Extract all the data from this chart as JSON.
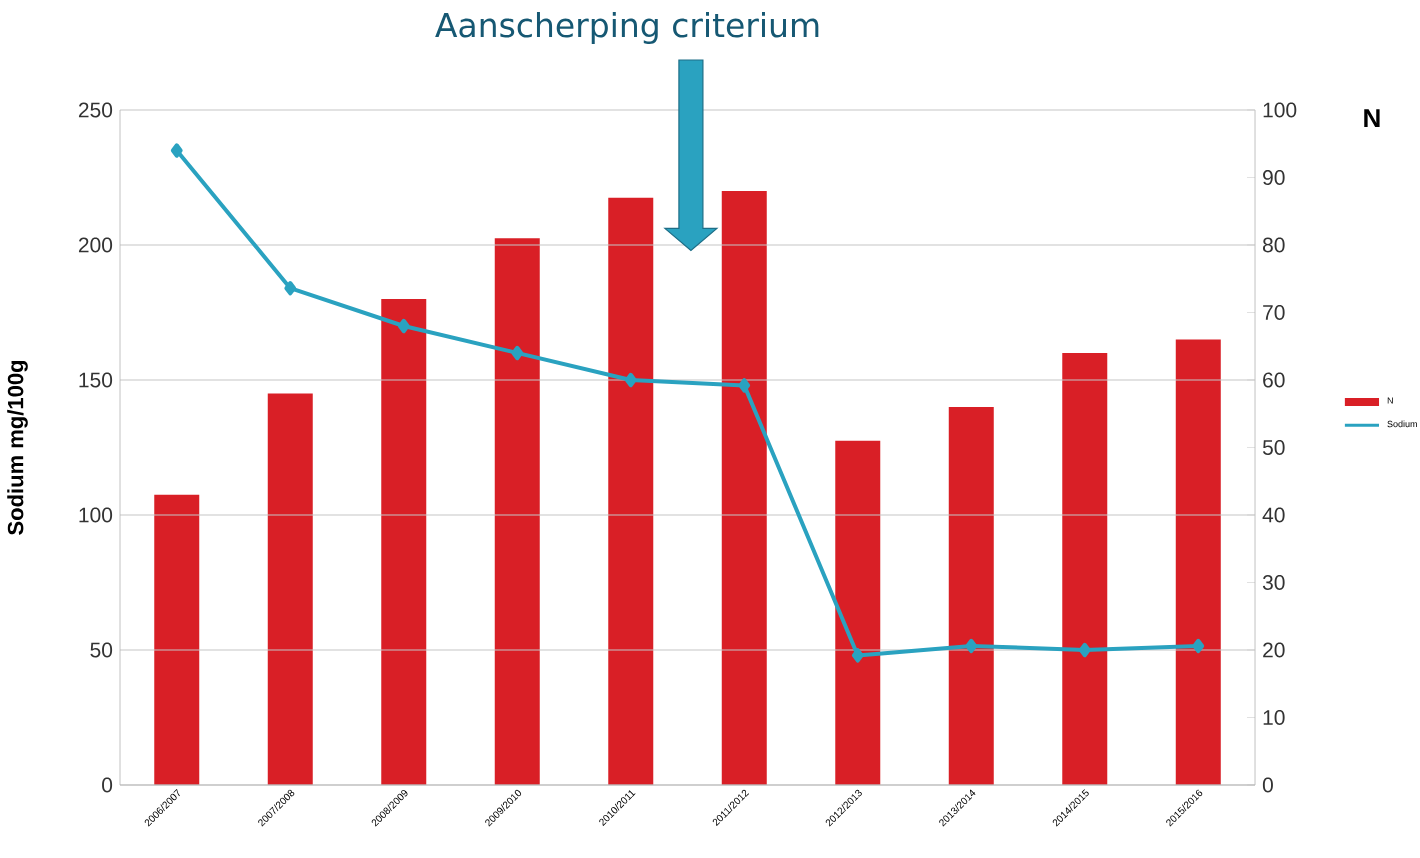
{
  "chart_data": {
    "type": "bar",
    "categories": [
      "2006/2007",
      "2007/2008",
      "2008/2009",
      "2009/2010",
      "2010/2011",
      "2011/2012",
      "2012/2013",
      "2013/2014",
      "2014/2015",
      "2015/2016"
    ],
    "ylabel": "Sodium mg/100g",
    "y2label": "N",
    "annotations": [
      "Aanscherping criterium"
    ],
    "series": [
      {
        "name": "N",
        "axis": "y2",
        "color": "#d91f26",
        "values": [
          43,
          58,
          72,
          81,
          87,
          88,
          51,
          56,
          64,
          66
        ]
      },
      {
        "name": "Sodium",
        "type": "line",
        "axis": "y",
        "color": "#2aa2c0",
        "values": [
          235,
          184,
          170,
          160,
          150,
          148,
          48,
          51.5,
          50,
          51.5
        ]
      }
    ],
    "ylim": [
      0,
      250
    ],
    "yticks": [
      0,
      50,
      100,
      150,
      200,
      250
    ],
    "y2lim": [
      0,
      100
    ],
    "y2ticks": [
      0,
      10,
      20,
      30,
      40,
      50,
      60,
      70,
      80,
      90,
      100
    ],
    "grid": "y",
    "legend": "right",
    "marker": "diamond"
  }
}
